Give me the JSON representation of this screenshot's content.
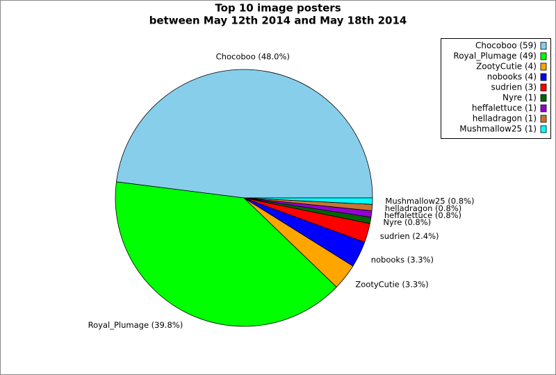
{
  "chart_data": {
    "type": "pie",
    "title": "Top 10 image posters",
    "subtitle": "between May 12th 2014 and May 18th 2014",
    "values": [
      48.0,
      39.8,
      3.3,
      3.3,
      2.4,
      0.8,
      0.8,
      0.8,
      0.8
    ],
    "value_labels": [
      "Chocoboo (48.0%)",
      "Royal_Plumage (39.8%)",
      "ZootyCutie (3.3%)",
      "nobooks (3.3%)",
      "sudrien (2.4%)",
      "Nyre (0.8%)",
      "heffalettuce (0.8%)",
      "helladragon (0.8%)",
      "Mushmallow25 (0.8%)"
    ],
    "legend_labels": [
      "Chocoboo (59)",
      "Royal_Plumage (49)",
      "ZootyCutie (4)",
      "nobooks (4)",
      "sudrien (3)",
      "Nyre (1)",
      "heffalettuce (1)",
      "helladragon (1)",
      "Mushmallow25 (1)"
    ],
    "colors": [
      "#87ceeb",
      "#00ff00",
      "#ffa500",
      "#0000ff",
      "#ff0000",
      "#006400",
      "#9400d3",
      "#c87533",
      "#00ffff"
    ],
    "legend": "upper right"
  }
}
